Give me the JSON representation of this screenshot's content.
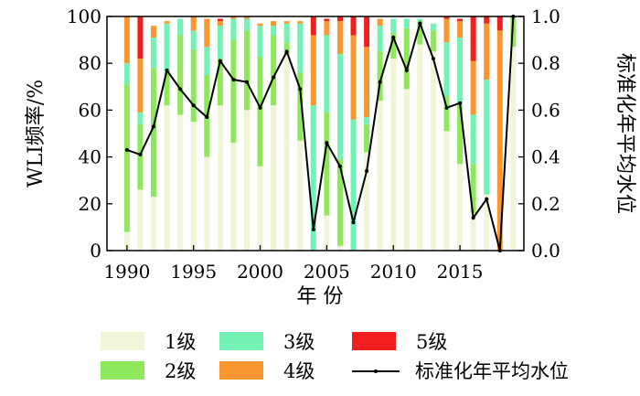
{
  "chart_data": {
    "type": "bar",
    "stacked": true,
    "xlabel": "年 份",
    "ylabel": "WLI频率/%",
    "y2label": "标准化年平均水位",
    "ylim": [
      0,
      100
    ],
    "y2lim": [
      0,
      1.0
    ],
    "xlim": [
      1988.5,
      2019.8
    ],
    "grid": false,
    "legend_position": "bottom",
    "x_ticks": [
      1990,
      1995,
      2000,
      2005,
      2010,
      2015
    ],
    "y_ticks": [
      0,
      20,
      40,
      60,
      80,
      100
    ],
    "y2_ticks": [
      "0.0",
      "0.2",
      "0.4",
      "0.6",
      "0.8",
      "1.0"
    ],
    "years": [
      1990,
      1991,
      1992,
      1993,
      1994,
      1995,
      1996,
      1997,
      1998,
      1999,
      2000,
      2001,
      2002,
      2003,
      2004,
      2005,
      2006,
      2007,
      2008,
      2009,
      2010,
      2011,
      2012,
      2013,
      2014,
      2015,
      2016,
      2017,
      2018,
      2019
    ],
    "series": [
      {
        "name": "1级",
        "color": "#f1f5d8",
        "values": [
          8,
          26,
          23,
          62,
          58,
          55,
          40,
          62,
          46,
          60,
          36,
          62,
          84,
          47,
          0,
          15,
          2,
          0,
          42,
          64,
          82,
          69,
          88,
          85,
          51,
          37,
          16,
          24,
          0,
          87
        ]
      },
      {
        "name": "2级",
        "color": "#8fe85c",
        "values": [
          63,
          28,
          55,
          14,
          34,
          31,
          35,
          20,
          44,
          34,
          47,
          30,
          5,
          29,
          0,
          44,
          37,
          0,
          12,
          21,
          11,
          26,
          10,
          9,
          15,
          25,
          21,
          0,
          0,
          13
        ]
      },
      {
        "name": "3级",
        "color": "#72f2b4",
        "values": [
          9,
          5,
          13,
          21,
          7,
          8,
          12,
          14,
          9,
          5,
          13,
          4,
          8,
          21,
          62,
          33,
          45,
          56,
          3,
          11,
          6,
          4,
          1,
          3,
          23,
          29,
          21,
          49,
          0,
          0
        ]
      },
      {
        "name": "4级",
        "color": "#fa9530",
        "values": [
          20,
          23,
          5,
          1,
          0,
          6,
          12,
          2,
          1,
          1,
          1,
          2,
          1,
          1,
          30,
          6,
          14,
          36,
          30,
          3,
          0,
          0,
          0,
          0,
          10,
          7,
          23,
          24,
          94,
          0
        ]
      },
      {
        "name": "5级",
        "color": "#f01e1e",
        "values": [
          0,
          18,
          0,
          0,
          0,
          0,
          0,
          1,
          0,
          0,
          0,
          0,
          0,
          0,
          8,
          1,
          2,
          8,
          13,
          0,
          0,
          0,
          0,
          0,
          1,
          1,
          19,
          3,
          6,
          0
        ]
      }
    ],
    "line": {
      "name": "标准化年平均水位",
      "axis": "right",
      "x": [
        1990,
        1991,
        1992,
        1993,
        1994,
        1995,
        1996,
        1997,
        1998,
        1999,
        2000,
        2001,
        2002,
        2003,
        2004,
        2005,
        2006,
        2007,
        2008,
        2009,
        2010,
        2011,
        2012,
        2013,
        2014,
        2015,
        2016,
        2017,
        2018,
        2019
      ],
      "values": [
        0.43,
        0.41,
        0.53,
        0.77,
        0.69,
        0.62,
        0.57,
        0.81,
        0.73,
        0.72,
        0.61,
        0.74,
        0.85,
        0.69,
        0.09,
        0.46,
        0.36,
        0.12,
        0.34,
        0.72,
        0.91,
        0.77,
        0.97,
        0.82,
        0.61,
        0.63,
        0.14,
        0.22,
        0.0,
        1.0
      ]
    }
  }
}
